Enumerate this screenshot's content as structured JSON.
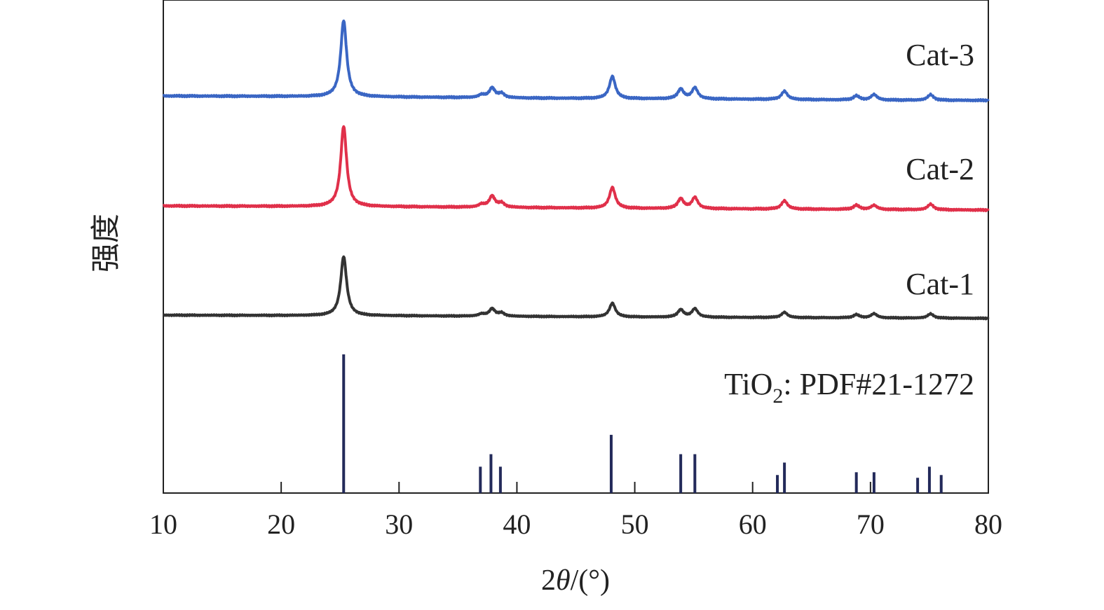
{
  "chart_data": {
    "type": "line",
    "title": "",
    "xlabel": "2θ/(°)",
    "xlabel_parts": {
      "num": "2",
      "theta": "θ",
      "rest": "/(°)"
    },
    "ylabel": "强度",
    "xlim": [
      10,
      80
    ],
    "xticks": [
      10,
      20,
      30,
      40,
      50,
      60,
      70,
      80
    ],
    "grid": false,
    "legend": "none (labels written beside each trace)",
    "peak_width": 0.3,
    "series": [
      {
        "name": "Cat-3",
        "color": "#3a66c4",
        "baseline": [
          [
            10,
            0.0
          ],
          [
            20,
            -0.3
          ],
          [
            30,
            -0.8
          ],
          [
            40,
            -1.5
          ],
          [
            50,
            -2.0
          ],
          [
            60,
            -2.4
          ],
          [
            70,
            -3.0
          ],
          [
            80,
            -3.2
          ]
        ],
        "peaks": [
          [
            25.3,
            55
          ],
          [
            37.0,
            2
          ],
          [
            37.9,
            7
          ],
          [
            38.7,
            3
          ],
          [
            48.1,
            16
          ],
          [
            53.9,
            7
          ],
          [
            55.1,
            8
          ],
          [
            62.7,
            6
          ],
          [
            68.8,
            3
          ],
          [
            70.3,
            4
          ],
          [
            75.1,
            4
          ]
        ]
      },
      {
        "name": "Cat-2",
        "color": "#e0304a",
        "baseline": [
          [
            10,
            0.0
          ],
          [
            20,
            -0.3
          ],
          [
            30,
            -0.6
          ],
          [
            40,
            -1.2
          ],
          [
            50,
            -1.8
          ],
          [
            60,
            -2.2
          ],
          [
            70,
            -2.6
          ],
          [
            80,
            -3.0
          ]
        ],
        "peaks": [
          [
            25.3,
            58
          ],
          [
            37.0,
            2
          ],
          [
            37.9,
            8
          ],
          [
            38.7,
            3
          ],
          [
            48.1,
            15
          ],
          [
            53.9,
            7
          ],
          [
            55.1,
            8
          ],
          [
            62.7,
            6
          ],
          [
            68.8,
            3
          ],
          [
            70.3,
            3
          ],
          [
            75.1,
            4
          ]
        ]
      },
      {
        "name": "Cat-1",
        "color": "#333333",
        "baseline": [
          [
            10,
            0.0
          ],
          [
            20,
            -0.3
          ],
          [
            30,
            -0.6
          ],
          [
            40,
            -1.2
          ],
          [
            50,
            -1.8
          ],
          [
            60,
            -2.2
          ],
          [
            70,
            -2.6
          ],
          [
            80,
            -3.0
          ]
        ],
        "peaks": [
          [
            25.3,
            56
          ],
          [
            37.0,
            2
          ],
          [
            37.9,
            7
          ],
          [
            38.7,
            3
          ],
          [
            48.1,
            13
          ],
          [
            53.9,
            7
          ],
          [
            55.1,
            8
          ],
          [
            62.7,
            5
          ],
          [
            68.8,
            3
          ],
          [
            70.3,
            4
          ],
          [
            75.1,
            4
          ]
        ]
      }
    ],
    "reference": {
      "name_main": "TiO",
      "name_sub": "2",
      "name_rest": ": PDF#21-1272",
      "color": "#232a5a",
      "lines": [
        {
          "x": 25.3,
          "intensity": 100
        },
        {
          "x": 36.9,
          "intensity": 19
        },
        {
          "x": 37.8,
          "intensity": 28
        },
        {
          "x": 38.6,
          "intensity": 19
        },
        {
          "x": 48.0,
          "intensity": 42
        },
        {
          "x": 53.9,
          "intensity": 28
        },
        {
          "x": 55.1,
          "intensity": 28
        },
        {
          "x": 62.1,
          "intensity": 13
        },
        {
          "x": 62.7,
          "intensity": 22
        },
        {
          "x": 68.8,
          "intensity": 15
        },
        {
          "x": 70.3,
          "intensity": 15
        },
        {
          "x": 74.0,
          "intensity": 11
        },
        {
          "x": 75.0,
          "intensity": 19
        },
        {
          "x": 76.0,
          "intensity": 13
        }
      ]
    }
  }
}
